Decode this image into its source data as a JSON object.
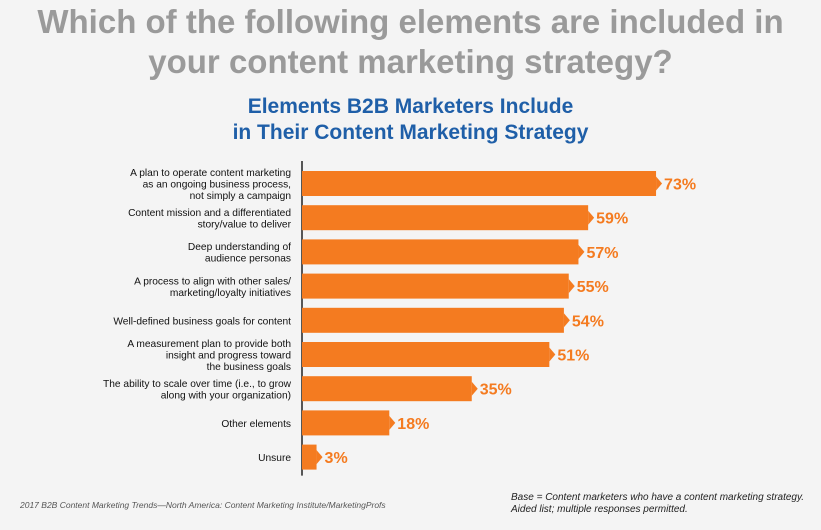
{
  "question_line1": "Which of the following elements are included in",
  "question_line2": "your content marketing strategy?",
  "chart_data": {
    "type": "bar",
    "orientation": "horizontal",
    "title_line1": "Elements B2B Marketers Include",
    "title_line2": "in Their Content Marketing Strategy",
    "categories": [
      [
        "A plan to operate content marketing",
        "as an ongoing business process,",
        "not simply a campaign"
      ],
      [
        "Content mission and a differentiated",
        "story/value to deliver"
      ],
      [
        "Deep understanding of",
        "audience personas"
      ],
      [
        "A process to align with other sales/",
        "marketing/loyalty initiatives"
      ],
      [
        "Well-defined business goals for content"
      ],
      [
        "A measurement plan to provide both",
        "insight and progress toward",
        "the business goals"
      ],
      [
        "The ability to scale over time (i.e., to grow",
        "along with your organization)"
      ],
      [
        "Other elements"
      ],
      [
        "Unsure"
      ]
    ],
    "values": [
      73,
      59,
      57,
      55,
      54,
      51,
      35,
      18,
      3
    ],
    "value_labels": [
      "73%",
      "59%",
      "57%",
      "55%",
      "54%",
      "51%",
      "35%",
      "18%",
      "3%"
    ],
    "xlim": [
      0,
      100
    ],
    "bar_color": "#f47b20",
    "label_color": "#f47b20",
    "title_color": "#1f5fa8"
  },
  "footnote_source": "2017 B2B Content Marketing Trends—North America: Content Marketing Institute/MarketingProfs",
  "footnote_base_line1": "Base = Content marketers who have a content marketing strategy.",
  "footnote_base_line2": "Aided list; multiple responses permitted."
}
